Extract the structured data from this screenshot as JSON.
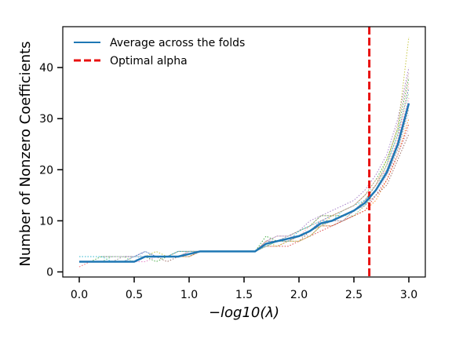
{
  "chart_data": {
    "type": "line",
    "xlabel": "−log10(λ)",
    "ylabel": "Number of Nonzero Coefficients",
    "xlim": [
      -0.15,
      3.15
    ],
    "ylim": [
      -1,
      48
    ],
    "xticks": [
      "0.0",
      "0.5",
      "1.0",
      "1.5",
      "2.0",
      "2.5",
      "3.0"
    ],
    "yticks": [
      "0",
      "10",
      "20",
      "30",
      "40"
    ],
    "grid": false,
    "legend_position": "top-left",
    "legend": {
      "average_label": "Average across the folds",
      "optimal_label": "Optimal alpha"
    },
    "optimal_alpha_x": 2.64,
    "x": [
      0.0,
      0.1,
      0.2,
      0.3,
      0.4,
      0.5,
      0.6,
      0.7,
      0.8,
      0.9,
      1.0,
      1.1,
      1.2,
      1.3,
      1.4,
      1.5,
      1.6,
      1.7,
      1.8,
      1.9,
      2.0,
      2.1,
      2.2,
      2.3,
      2.4,
      2.5,
      2.6,
      2.7,
      2.8,
      2.9,
      3.0
    ],
    "average": [
      2,
      2,
      2,
      2,
      2,
      2,
      3,
      3,
      3,
      3,
      3.5,
      4,
      4,
      4,
      4,
      4,
      4,
      5.5,
      6,
      6.5,
      7,
      8,
      9.5,
      10,
      11,
      12,
      13.5,
      16,
      19.5,
      25,
      33
    ],
    "fold_series": [
      {
        "values": [
          2,
          2,
          2,
          3,
          3,
          3,
          4,
          3,
          3,
          3,
          4,
          4,
          4,
          4,
          4,
          4,
          4,
          6,
          6,
          6,
          7,
          8,
          10,
          11,
          11,
          12,
          14,
          17,
          21,
          27,
          36
        ]
      },
      {
        "values": [
          1,
          2,
          2,
          2,
          2,
          2,
          3,
          3,
          3,
          3,
          3,
          4,
          4,
          4,
          4,
          4,
          4,
          5,
          5,
          6,
          6,
          7,
          9,
          9,
          10,
          11,
          12,
          14,
          18,
          23,
          30
        ]
      },
      {
        "values": [
          2,
          2,
          3,
          3,
          3,
          3,
          3,
          2,
          3,
          4,
          4,
          4,
          4,
          4,
          4,
          4,
          4,
          7,
          6,
          7,
          8,
          9,
          11,
          11,
          12,
          13,
          15,
          18,
          22,
          28,
          38
        ]
      },
      {
        "values": [
          2,
          2,
          2,
          2,
          2,
          3,
          3,
          3,
          3,
          3,
          3,
          4,
          4,
          4,
          4,
          4,
          4,
          5,
          5,
          5,
          6,
          7,
          8,
          9,
          10,
          11,
          12,
          15,
          18,
          23,
          29
        ]
      },
      {
        "values": [
          3,
          3,
          3,
          3,
          3,
          3,
          4,
          3,
          3,
          4,
          4,
          4,
          4,
          4,
          4,
          4,
          4,
          6,
          7,
          7,
          8,
          10,
          11,
          12,
          13,
          14,
          16,
          19,
          23,
          30,
          40
        ]
      },
      {
        "values": [
          2,
          2,
          2,
          2,
          2,
          2,
          3,
          3,
          2,
          3,
          3,
          4,
          4,
          4,
          4,
          4,
          4,
          5,
          6,
          6,
          6,
          8,
          9,
          9,
          10,
          11,
          13,
          15,
          17,
          22,
          27
        ]
      },
      {
        "values": [
          1,
          2,
          2,
          2,
          2,
          2,
          2,
          3,
          3,
          3,
          4,
          4,
          4,
          4,
          4,
          4,
          4,
          6,
          6,
          7,
          7,
          8,
          10,
          10,
          11,
          12,
          14,
          17,
          20,
          26,
          34
        ]
      },
      {
        "values": [
          2,
          2,
          2,
          2,
          3,
          3,
          3,
          3,
          3,
          3,
          3,
          4,
          4,
          4,
          4,
          4,
          4,
          5,
          6,
          6,
          7,
          7,
          9,
          10,
          10,
          12,
          13,
          16,
          19,
          24,
          32
        ]
      },
      {
        "values": [
          2,
          2,
          2,
          2,
          2,
          2,
          3,
          4,
          3,
          3,
          3,
          4,
          4,
          4,
          4,
          4,
          4,
          6,
          5,
          6,
          7,
          8,
          9,
          11,
          11,
          12,
          14,
          17,
          22,
          28,
          46
        ]
      },
      {
        "values": [
          3,
          3,
          3,
          2,
          2,
          3,
          3,
          3,
          3,
          4,
          4,
          4,
          4,
          4,
          4,
          4,
          4,
          5,
          6,
          6,
          8,
          9,
          10,
          10,
          12,
          13,
          14,
          16,
          20,
          25,
          33
        ]
      },
      {
        "values": [
          2,
          2,
          2,
          2,
          2,
          2,
          4,
          3,
          3,
          3,
          3,
          4,
          4,
          4,
          4,
          4,
          4,
          6,
          6,
          7,
          7,
          8,
          10,
          10,
          11,
          12,
          13,
          15,
          19,
          24,
          31
        ]
      },
      {
        "values": [
          2,
          2,
          2,
          3,
          3,
          2,
          3,
          3,
          3,
          3,
          4,
          4,
          4,
          4,
          4,
          4,
          4,
          5,
          6,
          6,
          6,
          7,
          9,
          10,
          11,
          11,
          13,
          16,
          21,
          27,
          35
        ]
      },
      {
        "values": [
          1,
          2,
          2,
          2,
          2,
          2,
          3,
          3,
          3,
          3,
          3,
          4,
          4,
          4,
          4,
          4,
          4,
          6,
          6,
          6,
          7,
          9,
          10,
          11,
          12,
          13,
          15,
          18,
          20,
          26,
          37
        ]
      },
      {
        "values": [
          2,
          2,
          2,
          2,
          2,
          3,
          3,
          3,
          3,
          3,
          4,
          4,
          4,
          4,
          4,
          4,
          4,
          5,
          5,
          6,
          7,
          8,
          9,
          10,
          10,
          12,
          14,
          16,
          19,
          23,
          28
        ]
      },
      {
        "values": [
          2,
          2,
          2,
          2,
          2,
          2,
          3,
          3,
          3,
          4,
          4,
          4,
          4,
          4,
          4,
          4,
          4,
          6,
          7,
          7,
          8,
          9,
          11,
          11,
          12,
          13,
          15,
          17,
          21,
          29,
          39
        ]
      }
    ],
    "colors": {
      "average": "#1f77b4",
      "optimal": "#e8100f",
      "folds": [
        "#1f77b4",
        "#ff7f0e",
        "#2ca02c",
        "#d62728",
        "#9467bd",
        "#8c564b",
        "#e377c2",
        "#7f7f7f",
        "#bcbd22",
        "#17becf",
        "#aec7e8",
        "#98df8a",
        "#ff9896",
        "#c5b0d5",
        "#c49c94"
      ]
    }
  }
}
